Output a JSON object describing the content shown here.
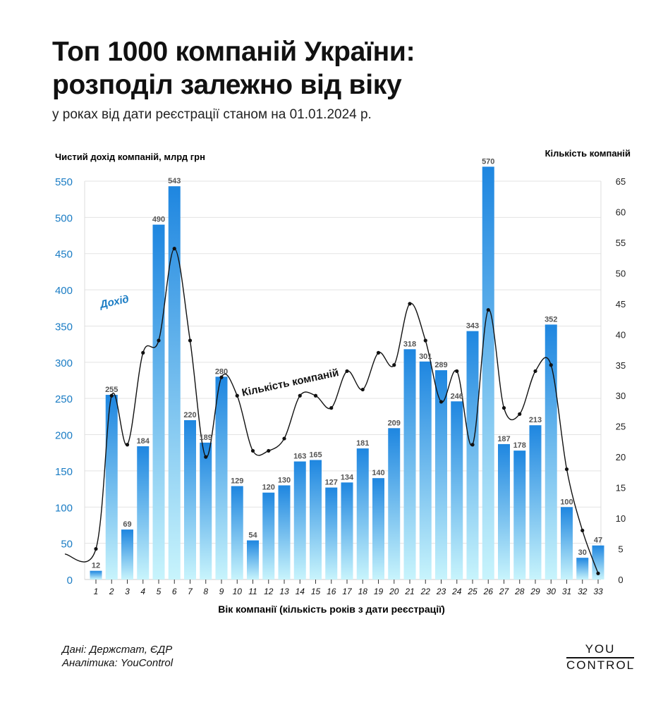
{
  "title_line1": "Топ 1000 компаній України:",
  "title_line2": "розподіл залежно від віку",
  "subtitle": "у роках від дати реєстрації станом на 01.01.2024 р.",
  "source_line1": "Дані: Держстат, ЄДР",
  "source_line2": "Аналітика: YouControl",
  "logo_line1": "YOU",
  "logo_line2": "CONTROL",
  "colors": {
    "bar_top": "#1e86e0",
    "bar_bottom": "#c8f4fc",
    "axis_text": "#1a7cc4",
    "line": "#111111"
  },
  "chart_data": {
    "type": "bar",
    "xlabel": "Вік компанії (кількість років з дати реєстрації)",
    "ylabel": "Чистий дохід компаній, млрд грн",
    "y2label": "Кількість компаній",
    "ylim": [
      0,
      550
    ],
    "y2lim": [
      0,
      65
    ],
    "yticks": [
      0,
      50,
      100,
      150,
      200,
      250,
      300,
      350,
      400,
      450,
      500,
      550
    ],
    "y2ticks": [
      0,
      5,
      10,
      15,
      20,
      25,
      30,
      35,
      40,
      45,
      50,
      55,
      60,
      65
    ],
    "grid": true,
    "categories": [
      "1",
      "2",
      "3",
      "4",
      "5",
      "6",
      "7",
      "8",
      "9",
      "10",
      "11",
      "12",
      "13",
      "14",
      "15",
      "16",
      "17",
      "18",
      "19",
      "20",
      "21",
      "22",
      "23",
      "24",
      "25",
      "26",
      "27",
      "28",
      "29",
      "30",
      "31",
      "32",
      "33"
    ],
    "series": [
      {
        "name": "Дохід",
        "type": "bar",
        "axis": "left",
        "values": [
          12,
          255,
          69,
          184,
          490,
          543,
          220,
          189,
          280,
          129,
          54,
          120,
          130,
          163,
          165,
          127,
          134,
          181,
          140,
          209,
          318,
          301,
          289,
          246,
          343,
          570,
          187,
          178,
          213,
          352,
          100,
          30,
          47
        ]
      },
      {
        "name": "Кількість компаній",
        "type": "line",
        "axis": "right",
        "values": [
          5,
          30,
          22,
          37,
          39,
          54,
          39,
          20,
          33,
          30,
          21,
          21,
          23,
          30,
          30,
          28,
          34,
          31,
          37,
          35,
          45,
          39,
          29,
          34,
          22,
          44,
          28,
          27,
          34,
          35,
          18,
          8,
          1
        ]
      }
    ]
  }
}
